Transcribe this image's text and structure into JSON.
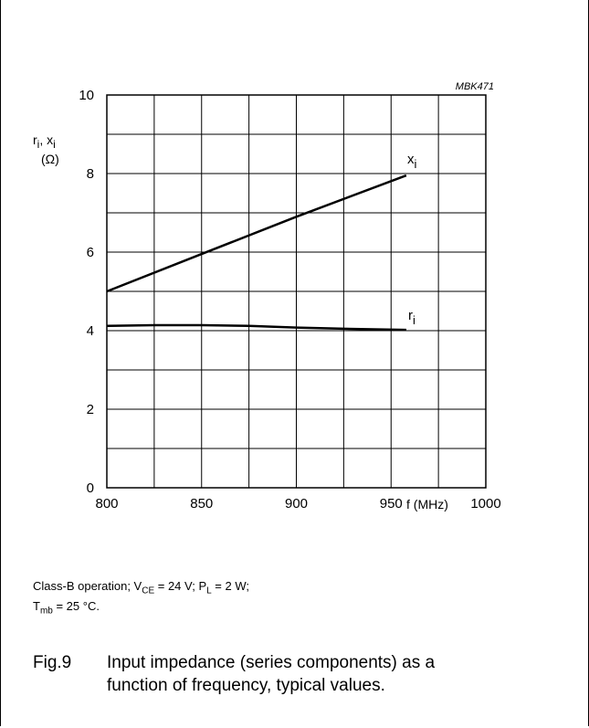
{
  "chart_data": {
    "type": "line",
    "code": "MBK471",
    "xlabel": "f (MHz)",
    "ylabel": {
      "r": "r",
      "r_sub": "i",
      "sep": ", ",
      "x": "x",
      "x_sub": "i",
      "unit": "(Ω)"
    },
    "xlim": [
      800,
      1000
    ],
    "ylim": [
      0,
      10
    ],
    "x_ticks": [
      800,
      850,
      900,
      950,
      1000
    ],
    "y_ticks": [
      0,
      2,
      4,
      6,
      8,
      10
    ],
    "grid": true,
    "series": [
      {
        "name": "xi",
        "label": "x",
        "label_sub": "i",
        "color": "#000000",
        "x": [
          800,
          850,
          900,
          958
        ],
        "y": [
          5.0,
          5.95,
          6.9,
          7.95
        ]
      },
      {
        "name": "ri",
        "label": "r",
        "label_sub": "i",
        "color": "#000000",
        "x": [
          800,
          825,
          850,
          875,
          900,
          925,
          958
        ],
        "y": [
          4.12,
          4.14,
          4.14,
          4.12,
          4.08,
          4.05,
          4.02
        ]
      }
    ]
  },
  "conditions": {
    "line1_a": "Class-B operation; V",
    "line1_sub1": "CE",
    "line1_b": " = 24 V; P",
    "line1_sub2": "L",
    "line1_c": " = 2 W;",
    "line2_a": "T",
    "line2_sub": "mb",
    "line2_b": " = 25 °C."
  },
  "caption": {
    "number": "Fig.9",
    "line1": "Input impedance (series components) as a",
    "line2": "function of frequency, typical values."
  }
}
